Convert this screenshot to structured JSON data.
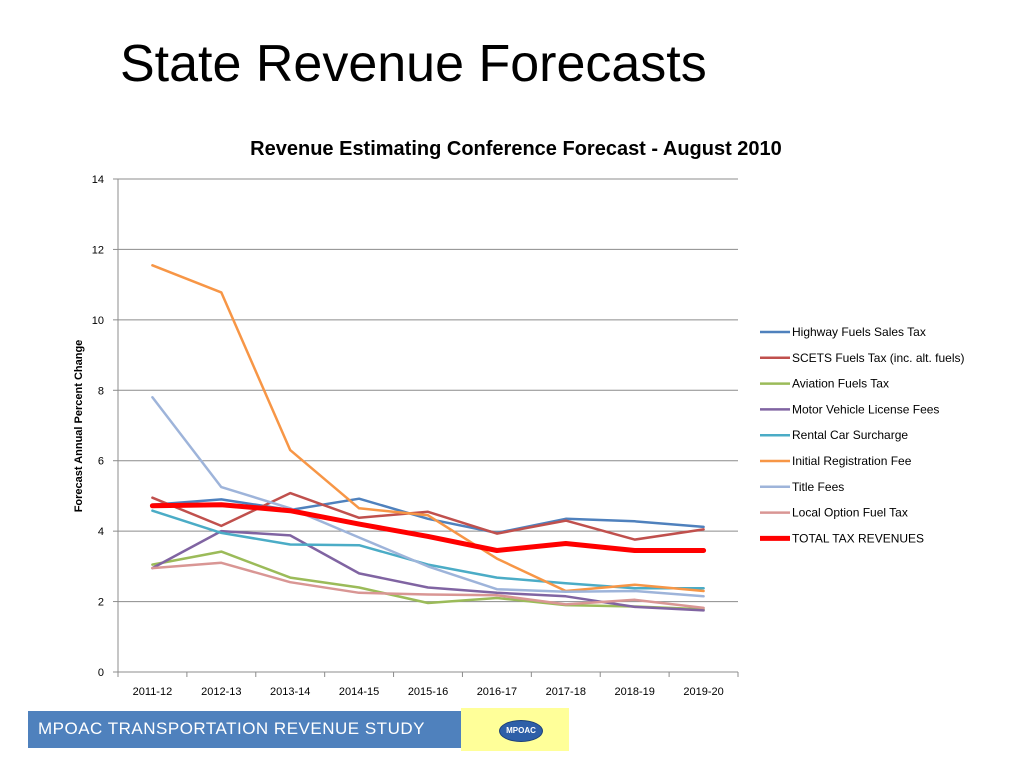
{
  "slide": {
    "title": "State Revenue Forecasts",
    "footer_text": "MPOAC  TRANSPORTATION REVENUE STUDY",
    "logo_text": "MPOAC"
  },
  "chart_data": {
    "type": "line",
    "title": "Revenue Estimating Conference Forecast - August 2010",
    "xlabel": "",
    "ylabel": "Forecast Annual Percent Change",
    "ylim": [
      0,
      14
    ],
    "yticks": [
      0,
      2,
      4,
      6,
      8,
      10,
      12,
      14
    ],
    "grid": true,
    "legend_position": "right",
    "categories": [
      "2011-12",
      "2012-13",
      "2013-14",
      "2014-15",
      "2015-16",
      "2016-17",
      "2017-18",
      "2018-19",
      "2019-20"
    ],
    "series": [
      {
        "name": "Highway Fuels Sales Tax",
        "color": "#4f81bd",
        "values": [
          4.75,
          4.9,
          4.6,
          4.92,
          4.35,
          3.95,
          4.35,
          4.28,
          4.12
        ],
        "bold": false
      },
      {
        "name": "SCETS Fuels Tax (inc. alt. fuels)",
        "color": "#c0504d",
        "values": [
          4.95,
          4.15,
          5.08,
          4.38,
          4.55,
          3.93,
          4.3,
          3.76,
          4.05
        ],
        "bold": false
      },
      {
        "name": "Aviation Fuels Tax",
        "color": "#9bbb59",
        "values": [
          3.05,
          3.42,
          2.68,
          2.4,
          1.96,
          2.1,
          1.9,
          1.86,
          1.78
        ],
        "bold": false
      },
      {
        "name": "Motor Vehicle License Fees",
        "color": "#8064a2",
        "values": [
          2.95,
          4.0,
          3.88,
          2.8,
          2.4,
          2.25,
          2.15,
          1.85,
          1.75
        ],
        "bold": false
      },
      {
        "name": "Rental Car Surcharge",
        "color": "#4bacc6",
        "values": [
          4.58,
          3.95,
          3.62,
          3.6,
          3.05,
          2.68,
          2.52,
          2.38,
          2.38
        ],
        "bold": false
      },
      {
        "name": "Initial Registration Fee",
        "color": "#f79646",
        "values": [
          11.55,
          10.78,
          6.3,
          4.65,
          4.45,
          3.22,
          2.3,
          2.48,
          2.3
        ],
        "bold": false
      },
      {
        "name": "Title Fees",
        "color": "#9eb4da",
        "values": [
          7.8,
          5.25,
          4.65,
          3.82,
          3.0,
          2.35,
          2.28,
          2.3,
          2.15
        ],
        "bold": false
      },
      {
        "name": "Local Option Fuel Tax",
        "color": "#d99694",
        "values": [
          2.95,
          3.1,
          2.55,
          2.25,
          2.2,
          2.18,
          1.92,
          2.05,
          1.82
        ],
        "bold": false
      },
      {
        "name": "TOTAL TAX REVENUES",
        "color": "#ff0000",
        "values": [
          4.72,
          4.75,
          4.58,
          4.2,
          3.85,
          3.45,
          3.65,
          3.45,
          3.45
        ],
        "bold": true
      }
    ]
  }
}
